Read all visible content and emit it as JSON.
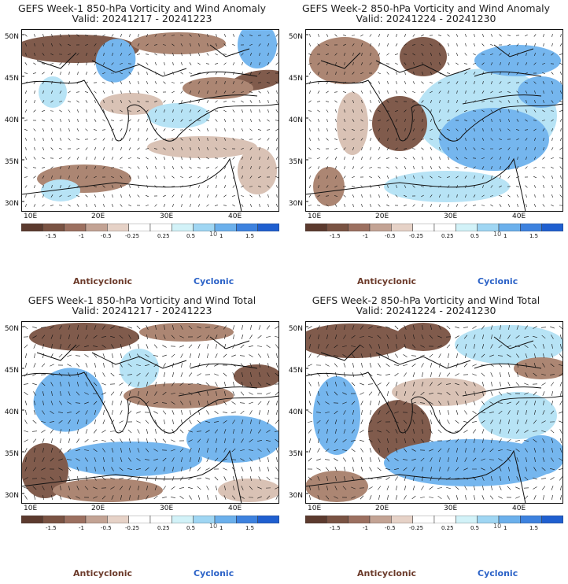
{
  "panels": [
    {
      "title_line1": "GEFS Week-1 850-hPa Vorticity and Wind Anomaly",
      "title_line2": "Valid: 20241217 - 20241223"
    },
    {
      "title_line1": "GEFS Week-2 850-hPa Vorticity and Wind Anomaly",
      "title_line2": "Valid: 20241224 - 20241230"
    },
    {
      "title_line1": "GEFS Week-1 850-hPa Vorticity and Wind Total",
      "title_line2": "Valid: 20241217 - 20241223"
    },
    {
      "title_line1": "GEFS Week-2 850-hPa Vorticity and Wind Total",
      "title_line2": "Valid: 20241224 - 20241230"
    }
  ],
  "lat_labels": [
    "50N",
    "45N",
    "40N",
    "35N",
    "30N"
  ],
  "lon_labels": [
    "10E",
    "20E",
    "30E",
    "40E"
  ],
  "colorbar": {
    "labels": [
      "-1.5",
      "-1",
      "-0.5",
      "-0.25",
      "0.25",
      "0.5",
      "1",
      "1.5"
    ],
    "unit": "10",
    "colors": [
      "#5c3a2e",
      "#7a5343",
      "#9c7060",
      "#c3a394",
      "#e6d2c7",
      "#ffffff",
      "#ffffff",
      "#d2f2f8",
      "#9fd6f3",
      "#6bb0ec",
      "#3d82df",
      "#1f5fd0"
    ]
  },
  "legend": {
    "anticyclonic": "Anticyclonic",
    "cyclonic": "Cyclonic"
  },
  "colors": {
    "brown_dark": "#7a5343",
    "brown_mid": "#a8806c",
    "brown_light": "#d7bfb2",
    "blue_light": "#b4e2f5",
    "blue_mid": "#6eb3ee",
    "blue_dark": "#2f72dc"
  }
}
